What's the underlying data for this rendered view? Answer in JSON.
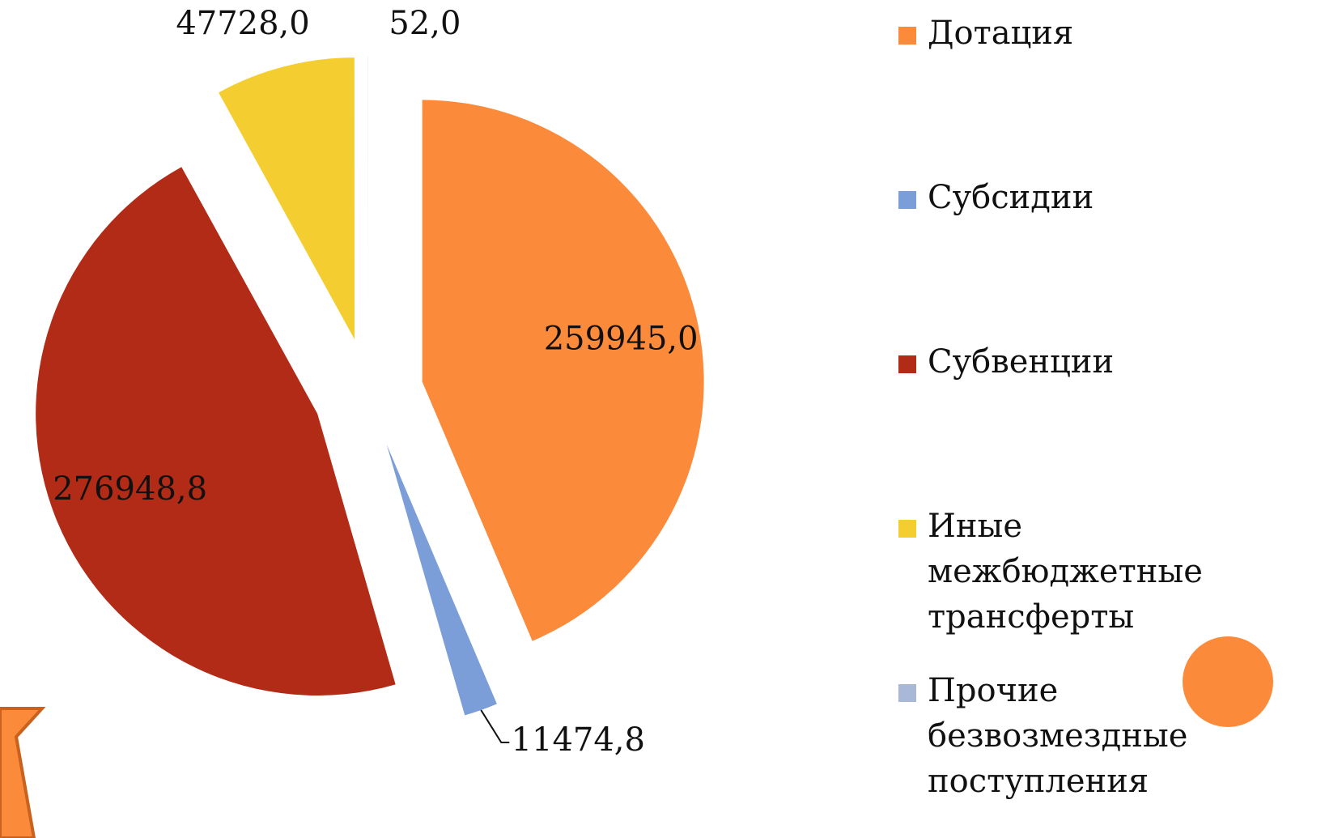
{
  "chart_data": {
    "type": "pie",
    "categories": [
      "Дотация",
      "Субсидии",
      "Субвенции",
      "Иные межбюджетные трансферты",
      "Прочие безвозмездные поступления"
    ],
    "values": [
      259945.0,
      11474.8,
      276948.8,
      47728.0,
      52.0
    ],
    "value_labels": [
      "259945,0",
      "11474,8",
      "276948,8",
      "47728,0",
      "52,0"
    ],
    "colors": [
      "#fb8a3a",
      "#7b9ed8",
      "#b22b17",
      "#f4ce30",
      "#aab8d8"
    ],
    "legend": "right"
  }
}
